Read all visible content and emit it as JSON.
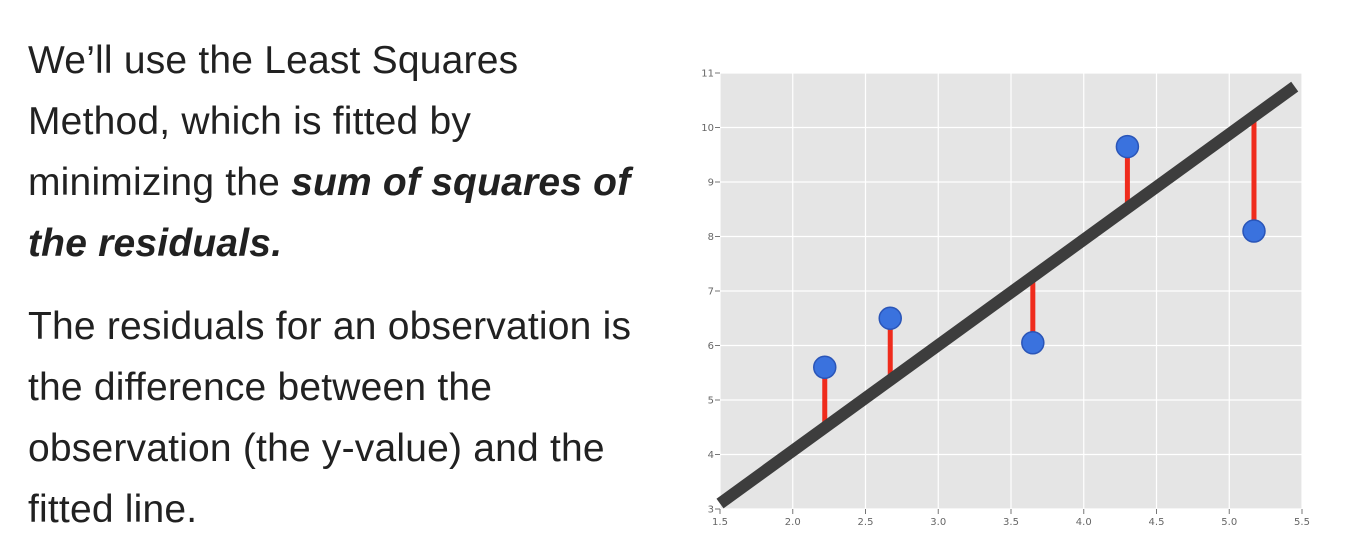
{
  "paragraph1": {
    "plain": "We’ll use the Least Squares Method, which is fitted by minimizing the ",
    "emphasis": "sum of squares of the residuals."
  },
  "paragraph2": "The residuals for an observation is the difference between the observation (the y-value) and the fitted line.",
  "colors": {
    "plot_background": "#e5e5e5",
    "grid": "#ffffff",
    "fit_line": "#3d3d3d",
    "residual": "#ef2b1c",
    "point": "#3a72de"
  },
  "chart_data": {
    "type": "scatter",
    "title": "",
    "xlabel": "",
    "ylabel": "",
    "xlim": [
      1.5,
      5.5
    ],
    "ylim": [
      3,
      11
    ],
    "grid": true,
    "x_ticks": [
      1.5,
      2.0,
      2.5,
      3.0,
      3.5,
      4.0,
      4.5,
      5.0,
      5.5
    ],
    "y_ticks": [
      3,
      4,
      5,
      6,
      7,
      8,
      9,
      10,
      11
    ],
    "points": [
      {
        "x": 2.22,
        "y": 5.6
      },
      {
        "x": 2.67,
        "y": 6.5
      },
      {
        "x": 3.65,
        "y": 6.05
      },
      {
        "x": 4.3,
        "y": 9.65
      },
      {
        "x": 5.17,
        "y": 8.1
      }
    ],
    "fit_line": {
      "x": [
        1.5,
        5.45
      ],
      "y": [
        3.1,
        10.75
      ]
    },
    "residuals": [
      {
        "x": 2.22,
        "from": 5.6,
        "to": 4.5
      },
      {
        "x": 2.67,
        "from": 6.5,
        "to": 5.4
      },
      {
        "x": 3.65,
        "from": 6.05,
        "to": 7.3
      },
      {
        "x": 4.3,
        "from": 9.65,
        "to": 8.6
      },
      {
        "x": 5.17,
        "from": 8.1,
        "to": 10.2
      }
    ]
  }
}
